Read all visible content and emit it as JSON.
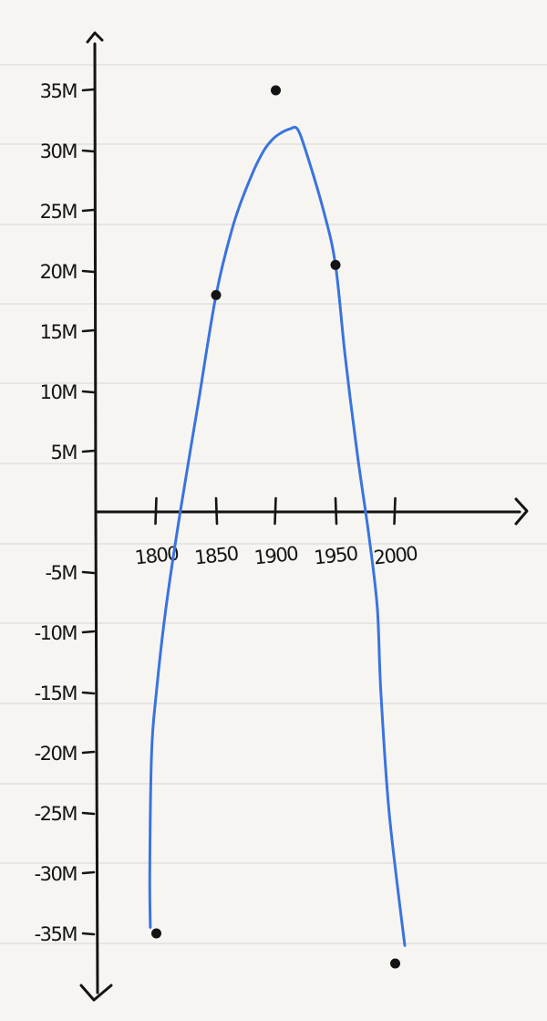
{
  "chart_data": {
    "type": "scatter",
    "title": "",
    "xlabel": "",
    "ylabel": "",
    "x_ticks": [
      {
        "value": 1800,
        "label": "1800"
      },
      {
        "value": 1850,
        "label": "1850"
      },
      {
        "value": 1900,
        "label": "1900"
      },
      {
        "value": 1950,
        "label": "1950"
      },
      {
        "value": 2000,
        "label": "2000"
      }
    ],
    "y_ticks": [
      {
        "value": 35,
        "label": "35M"
      },
      {
        "value": 30,
        "label": "30M"
      },
      {
        "value": 25,
        "label": "25M"
      },
      {
        "value": 20,
        "label": "20M"
      },
      {
        "value": 15,
        "label": "15M"
      },
      {
        "value": 10,
        "label": "10M"
      },
      {
        "value": 5,
        "label": "5M"
      },
      {
        "value": -5,
        "label": "-5M"
      },
      {
        "value": -10,
        "label": "-10M"
      },
      {
        "value": -15,
        "label": "-15M"
      },
      {
        "value": -20,
        "label": "-20M"
      },
      {
        "value": -25,
        "label": "-25M"
      },
      {
        "value": -30,
        "label": "-30M"
      },
      {
        "value": -35,
        "label": "-35M"
      }
    ],
    "points": [
      {
        "x": 1800,
        "y": -35
      },
      {
        "x": 1850,
        "y": 18
      },
      {
        "x": 1900,
        "y": 35
      },
      {
        "x": 1950,
        "y": 20.5
      },
      {
        "x": 2000,
        "y": -37.5
      }
    ],
    "fit_curve": {
      "color": "#3a73e0",
      "x": [
        1795,
        1794.5,
        1796,
        1800,
        1808,
        1820,
        1835,
        1850,
        1865,
        1880,
        1890,
        1898,
        1905,
        1912,
        1918,
        1925,
        1940,
        1950,
        1958,
        1968,
        1978,
        1985,
        1988,
        1995,
        2008
      ],
      "y": [
        -34.5,
        -30,
        -20,
        -15,
        -8,
        0,
        9,
        18,
        24,
        28,
        30,
        31,
        31.5,
        31.8,
        31.8,
        30,
        25,
        20.5,
        13,
        5,
        -2,
        -8,
        -15,
        -25,
        -36
      ]
    },
    "x_range": [
      1750,
      2115
    ],
    "y_range": [
      -40,
      40
    ],
    "grid": false,
    "legend": "none"
  },
  "colors": {
    "paper": "#f6f5f1",
    "ink": "#141414",
    "rule": "#dcdcd8",
    "curve": "#3a73e0"
  }
}
